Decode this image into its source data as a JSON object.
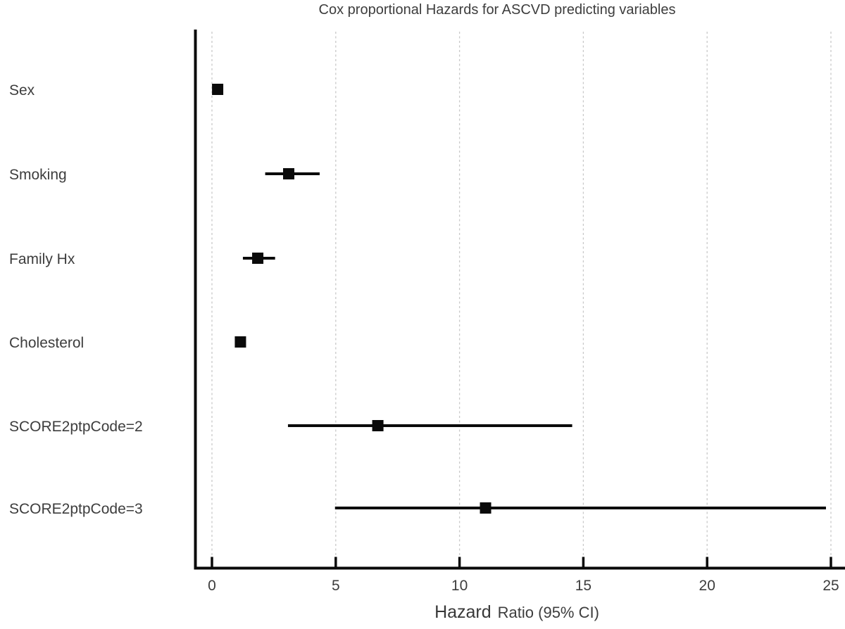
{
  "chart_data": {
    "type": "forest",
    "title": "Cox proportional Hazards for ASCVD predicting variables",
    "xlabel": "Hazard Ratio (95% CI)",
    "xlabel_parts": {
      "emphasis": "Hazard",
      "rest": "Ratio (95% CI)"
    },
    "ylabel": "",
    "x_ticks": [
      0,
      5,
      10,
      15,
      20,
      25
    ],
    "xlim": [
      -0.7,
      25.6
    ],
    "grid": "vertical-dashed",
    "legend": "none",
    "rows": [
      {
        "label": "Sex",
        "hr": 0.23,
        "ci_low": null,
        "ci_high": null
      },
      {
        "label": "Smoking",
        "hr": 3.1,
        "ci_low": 2.15,
        "ci_high": 4.35
      },
      {
        "label": "Family Hx",
        "hr": 1.85,
        "ci_low": 1.25,
        "ci_high": 2.55
      },
      {
        "label": "Cholesterol",
        "hr": 1.15,
        "ci_low": null,
        "ci_high": null
      },
      {
        "label": "SCORE2ptpCode=2",
        "hr": 6.7,
        "ci_low": 3.07,
        "ci_high": 14.55
      },
      {
        "label": "SCORE2ptpCode=3",
        "hr": 11.05,
        "ci_low": 4.97,
        "ci_high": 24.8
      }
    ],
    "colors": {
      "marker": "#0a0a0a",
      "ci_line": "#0a0a0a",
      "axis": "#0a0a0a",
      "gridline": "#c9c9c9",
      "text": "#3d3d3d",
      "background": "#ffffff"
    }
  }
}
